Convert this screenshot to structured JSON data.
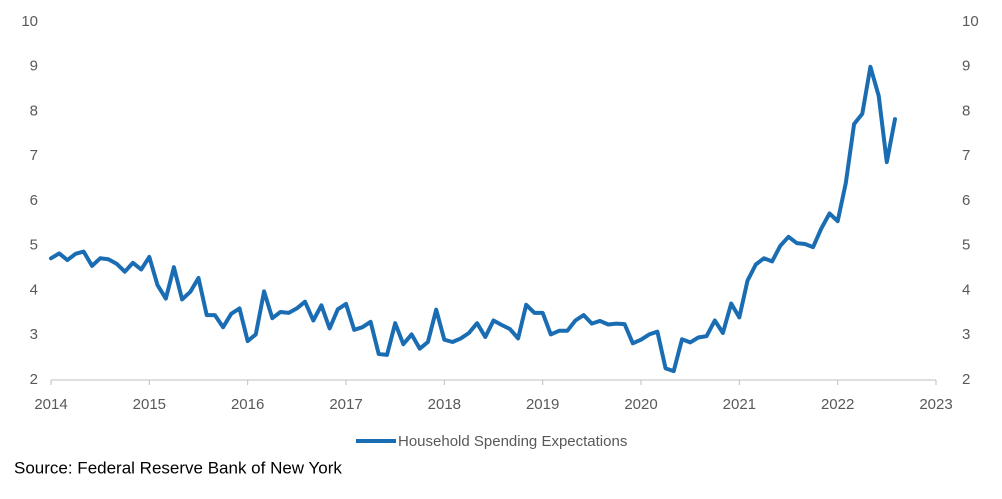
{
  "chart_data": {
    "type": "line",
    "x": [
      2014.0,
      2014.083,
      2014.167,
      2014.25,
      2014.333,
      2014.417,
      2014.5,
      2014.583,
      2014.667,
      2014.75,
      2014.833,
      2014.917,
      2015.0,
      2015.083,
      2015.167,
      2015.25,
      2015.333,
      2015.417,
      2015.5,
      2015.583,
      2015.667,
      2015.75,
      2015.833,
      2015.917,
      2016.0,
      2016.083,
      2016.167,
      2016.25,
      2016.333,
      2016.417,
      2016.5,
      2016.583,
      2016.667,
      2016.75,
      2016.833,
      2016.917,
      2017.0,
      2017.083,
      2017.167,
      2017.25,
      2017.333,
      2017.417,
      2017.5,
      2017.583,
      2017.667,
      2017.75,
      2017.833,
      2017.917,
      2018.0,
      2018.083,
      2018.167,
      2018.25,
      2018.333,
      2018.417,
      2018.5,
      2018.583,
      2018.667,
      2018.75,
      2018.833,
      2018.917,
      2019.0,
      2019.083,
      2019.167,
      2019.25,
      2019.333,
      2019.417,
      2019.5,
      2019.583,
      2019.667,
      2019.75,
      2019.833,
      2019.917,
      2020.0,
      2020.083,
      2020.167,
      2020.25,
      2020.333,
      2020.417,
      2020.5,
      2020.583,
      2020.667,
      2020.75,
      2020.833,
      2020.917,
      2021.0,
      2021.083,
      2021.167,
      2021.25,
      2021.333,
      2021.417,
      2021.5,
      2021.583,
      2021.667,
      2021.75,
      2021.833,
      2021.917,
      2022.0,
      2022.083,
      2022.167,
      2022.25,
      2022.333,
      2022.417,
      2022.5,
      2022.583
    ],
    "series": [
      {
        "name": "Household Spending Expectations",
        "color": "#1b6db3",
        "values": [
          4.72,
          4.83,
          4.68,
          4.82,
          4.87,
          4.55,
          4.72,
          4.7,
          4.6,
          4.42,
          4.62,
          4.47,
          4.75,
          4.12,
          3.82,
          4.52,
          3.8,
          3.97,
          4.28,
          3.45,
          3.45,
          3.18,
          3.48,
          3.6,
          2.87,
          3.02,
          3.98,
          3.38,
          3.52,
          3.5,
          3.6,
          3.75,
          3.33,
          3.67,
          3.15,
          3.58,
          3.7,
          3.12,
          3.18,
          3.3,
          2.58,
          2.56,
          3.27,
          2.8,
          3.02,
          2.7,
          2.85,
          3.57,
          2.9,
          2.85,
          2.93,
          3.05,
          3.27,
          2.96,
          3.33,
          3.23,
          3.14,
          2.93,
          3.68,
          3.5,
          3.5,
          3.02,
          3.1,
          3.1,
          3.33,
          3.45,
          3.26,
          3.32,
          3.24,
          3.26,
          3.25,
          2.82,
          2.9,
          3.02,
          3.08,
          2.26,
          2.2,
          2.91,
          2.84,
          2.95,
          2.98,
          3.33,
          3.05,
          3.71,
          3.4,
          4.22,
          4.58,
          4.72,
          4.65,
          5.0,
          5.2,
          5.06,
          5.04,
          4.97,
          5.38,
          5.72,
          5.55,
          6.4,
          7.72,
          7.95,
          9.0,
          8.35,
          6.87,
          7.83
        ]
      }
    ],
    "xlim": [
      2014,
      2023
    ],
    "xticks": [
      2014,
      2015,
      2016,
      2017,
      2018,
      2019,
      2020,
      2021,
      2022,
      2023
    ],
    "ylim": [
      2,
      10
    ],
    "yticks": [
      2,
      3,
      4,
      5,
      6,
      7,
      8,
      9,
      10
    ],
    "y2lim": [
      2,
      10
    ],
    "y2ticks": [
      2,
      3,
      4,
      5,
      6,
      7,
      8,
      9,
      10
    ],
    "legend": "bottom",
    "source": "Source: Federal Reserve  Bank of New York"
  }
}
